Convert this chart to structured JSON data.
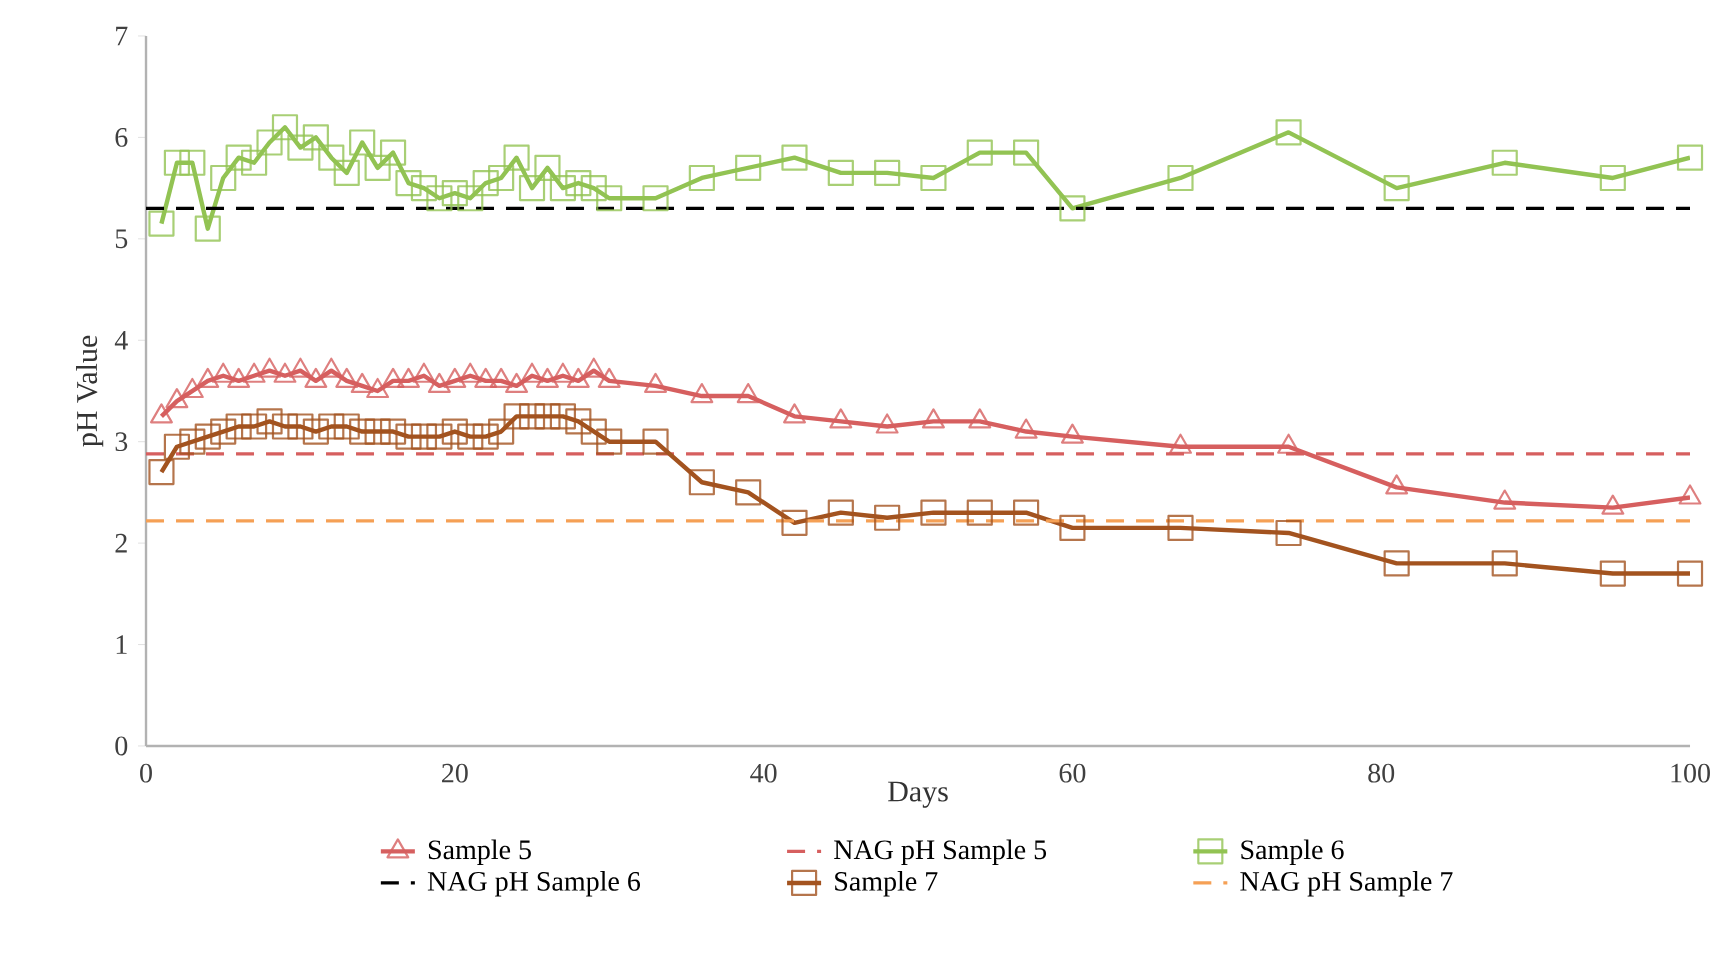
{
  "chart_data": {
    "type": "line",
    "xlabel": "Days",
    "ylabel": "pH Value",
    "xlim": [
      0,
      100
    ],
    "xticks": [
      0,
      20,
      40,
      60,
      80,
      100
    ],
    "ylim": [
      0,
      7
    ],
    "yticks": [
      0,
      1,
      2,
      3,
      4,
      5,
      6,
      7
    ],
    "grid": false,
    "legend": "bottom",
    "series": [
      {
        "name": "Sample 5",
        "color": "#d65f5f",
        "marker": "triangle",
        "x": [
          1,
          2,
          3,
          4,
          5,
          6,
          7,
          8,
          9,
          10,
          11,
          12,
          13,
          14,
          15,
          16,
          17,
          18,
          19,
          20,
          21,
          22,
          23,
          24,
          25,
          26,
          27,
          28,
          29,
          30,
          33,
          36,
          39,
          42,
          45,
          48,
          51,
          54,
          57,
          60,
          67,
          74,
          81,
          88,
          95,
          100
        ],
        "values": [
          3.25,
          3.4,
          3.5,
          3.6,
          3.65,
          3.6,
          3.65,
          3.7,
          3.65,
          3.7,
          3.6,
          3.7,
          3.6,
          3.55,
          3.5,
          3.6,
          3.6,
          3.65,
          3.55,
          3.6,
          3.65,
          3.6,
          3.6,
          3.55,
          3.65,
          3.6,
          3.65,
          3.6,
          3.7,
          3.6,
          3.55,
          3.45,
          3.45,
          3.25,
          3.2,
          3.15,
          3.2,
          3.2,
          3.1,
          3.05,
          2.95,
          2.95,
          2.55,
          2.4,
          2.35,
          2.45
        ]
      },
      {
        "name": "Sample 6",
        "color": "#92c353",
        "marker": "square",
        "x": [
          1,
          2,
          3,
          4,
          5,
          6,
          7,
          8,
          9,
          10,
          11,
          12,
          13,
          14,
          15,
          16,
          17,
          18,
          19,
          20,
          21,
          22,
          23,
          24,
          25,
          26,
          27,
          28,
          29,
          30,
          33,
          36,
          39,
          42,
          45,
          48,
          51,
          54,
          57,
          60,
          67,
          74,
          81,
          88,
          95,
          100
        ],
        "values": [
          5.15,
          5.75,
          5.75,
          5.1,
          5.6,
          5.8,
          5.75,
          5.95,
          6.1,
          5.9,
          6.0,
          5.8,
          5.65,
          5.95,
          5.7,
          5.85,
          5.55,
          5.5,
          5.4,
          5.45,
          5.4,
          5.55,
          5.6,
          5.8,
          5.5,
          5.7,
          5.5,
          5.55,
          5.5,
          5.4,
          5.4,
          5.6,
          5.7,
          5.8,
          5.65,
          5.65,
          5.6,
          5.85,
          5.85,
          5.3,
          5.6,
          6.05,
          5.5,
          5.75,
          5.6,
          5.8
        ]
      },
      {
        "name": "Sample 7",
        "color": "#a3531f",
        "marker": "square",
        "x": [
          1,
          2,
          3,
          4,
          5,
          6,
          7,
          8,
          9,
          10,
          11,
          12,
          13,
          14,
          15,
          16,
          17,
          18,
          19,
          20,
          21,
          22,
          23,
          24,
          25,
          26,
          27,
          28,
          29,
          30,
          33,
          36,
          39,
          42,
          45,
          48,
          51,
          54,
          57,
          60,
          67,
          74,
          81,
          88,
          95,
          100
        ],
        "values": [
          2.7,
          2.95,
          3.0,
          3.05,
          3.1,
          3.15,
          3.15,
          3.2,
          3.15,
          3.15,
          3.1,
          3.15,
          3.15,
          3.1,
          3.1,
          3.1,
          3.05,
          3.05,
          3.05,
          3.1,
          3.05,
          3.05,
          3.1,
          3.25,
          3.25,
          3.25,
          3.25,
          3.2,
          3.1,
          3.0,
          3.0,
          2.6,
          2.5,
          2.2,
          2.3,
          2.25,
          2.3,
          2.3,
          2.3,
          2.15,
          2.15,
          2.1,
          1.8,
          1.8,
          1.7,
          1.7
        ]
      }
    ],
    "ref_lines": [
      {
        "axis": "y",
        "value": 2.88,
        "label": "NAG pH Sample 5",
        "color": "#d65f5f",
        "line_style": "dashed"
      },
      {
        "axis": "y",
        "value": 5.3,
        "label": "NAG pH Sample 6",
        "color": "#000000",
        "line_style": "dashed"
      },
      {
        "axis": "y",
        "value": 2.22,
        "label": "NAG pH Sample 7",
        "color": "#f5a055",
        "line_style": "dashed"
      }
    ]
  }
}
